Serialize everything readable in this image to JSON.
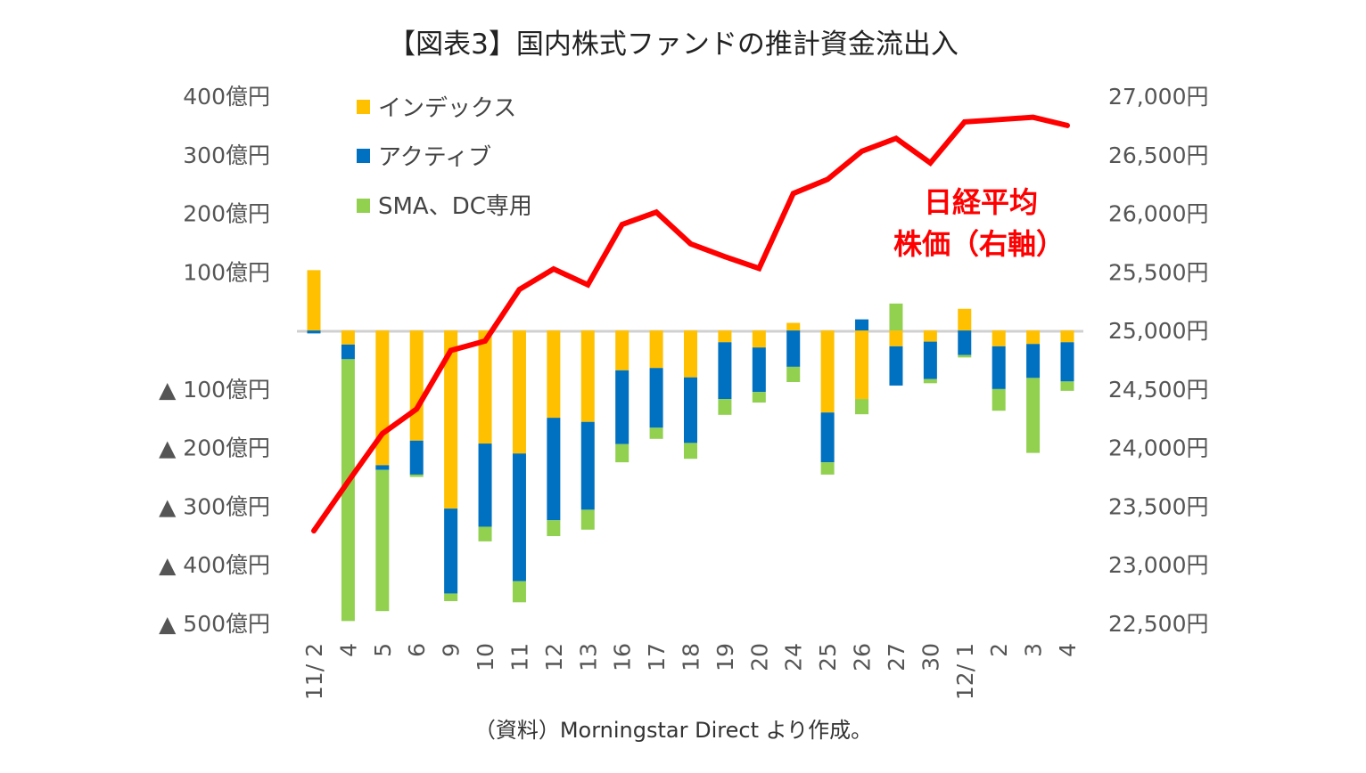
{
  "chart_data": {
    "type": "bar",
    "stacked": true,
    "title": "【図表3】国内株式ファンドの推計資金流出入",
    "source_note": "（資料）Morningstar Direct より作成。",
    "categories": [
      "11/ 2",
      "4",
      "5",
      "6",
      "9",
      "10",
      "11",
      "12",
      "13",
      "16",
      "17",
      "18",
      "19",
      "20",
      "24",
      "25",
      "26",
      "27",
      "30",
      "12/ 1",
      "2",
      "3",
      "4"
    ],
    "series": [
      {
        "name": "インデックス",
        "color": "#FFC000",
        "values": [
          103,
          -24,
          -230,
          -188,
          -304,
          -193,
          -210,
          -149,
          -156,
          -68,
          -64,
          -80,
          -20,
          -29,
          13,
          -140,
          -117,
          -27,
          -19,
          37,
          -27,
          -23,
          -20
        ]
      },
      {
        "name": "アクティブ",
        "color": "#0070C0",
        "values": [
          -5,
          -25,
          -8,
          -58,
          -145,
          -142,
          -218,
          -175,
          -150,
          -126,
          -102,
          -112,
          -97,
          -76,
          -62,
          -85,
          19,
          -67,
          -64,
          -42,
          -73,
          -58,
          -67
        ]
      },
      {
        "name": "SMA、DC専用",
        "color": "#92D050",
        "values": [
          0,
          -447,
          -241,
          -4,
          -13,
          -25,
          -36,
          -27,
          -34,
          -31,
          -19,
          -27,
          -27,
          -18,
          -26,
          -21,
          -26,
          46,
          -7,
          -4,
          -37,
          -128,
          -16
        ]
      }
    ],
    "line_series": {
      "name": "日経平均株価（右軸）",
      "label_lines": [
        "日経平均",
        "株価（右軸）"
      ],
      "color": "#FF0000",
      "axis": "right",
      "values": [
        23290,
        23710,
        24120,
        24330,
        24830,
        24910,
        25350,
        25525,
        25390,
        25905,
        26010,
        25740,
        25630,
        25530,
        26170,
        26290,
        26530,
        26640,
        26430,
        26780,
        26800,
        26820,
        26750
      ]
    },
    "y_left": {
      "range": [
        -500,
        400
      ],
      "ticks": [
        400,
        300,
        200,
        100,
        -100,
        -200,
        -300,
        -400,
        -500
      ],
      "tick_labels": [
        "400億円",
        "300億円",
        "200億円",
        "100億円",
        "▲ 100億円",
        "▲ 200億円",
        "▲ 300億円",
        "▲ 400億円",
        "▲ 500億円"
      ]
    },
    "y_right": {
      "range": [
        22500,
        27000
      ],
      "ticks": [
        27000,
        26500,
        26000,
        25500,
        25000,
        24500,
        24000,
        23500,
        23000,
        22500
      ],
      "tick_labels": [
        "27,000円",
        "26,500円",
        "26,000円",
        "25,500円",
        "25,000円",
        "24,500円",
        "24,000円",
        "23,500円",
        "23,000円",
        "22,500円"
      ]
    },
    "grid": false,
    "legend_position": "top-left"
  }
}
